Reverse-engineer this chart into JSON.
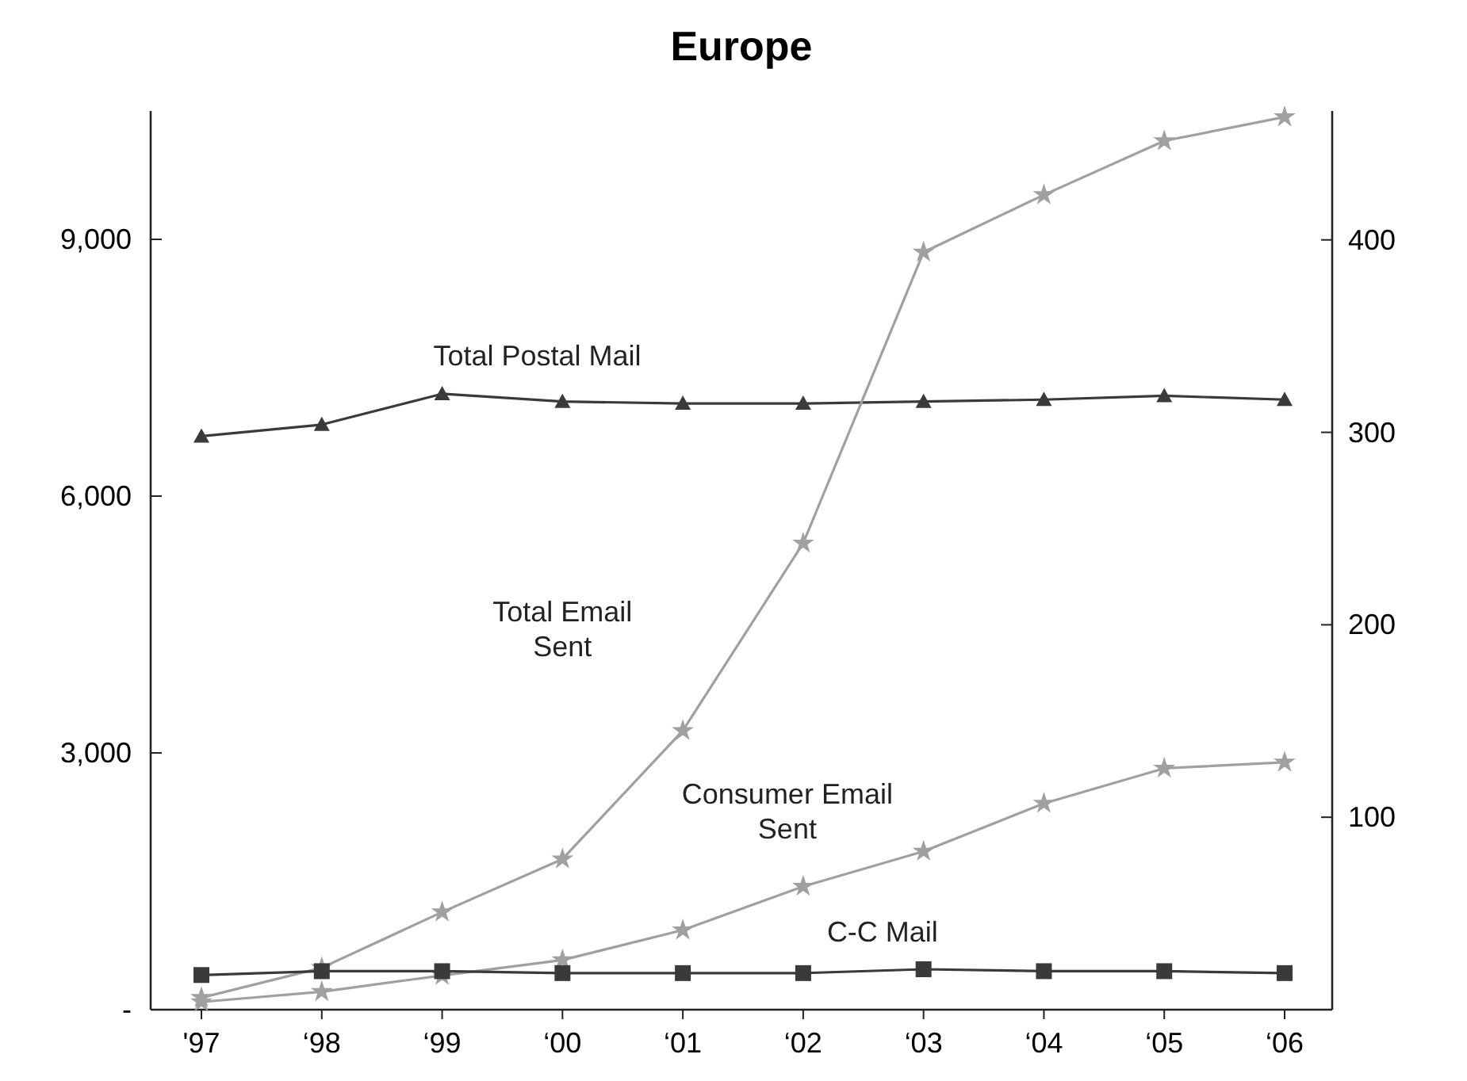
{
  "chart_data": {
    "type": "line",
    "title": "Europe",
    "categories": [
      "'97",
      "‘98",
      "‘99",
      "‘00",
      "‘01",
      "‘02",
      "‘03",
      "‘04",
      "‘05",
      "‘06"
    ],
    "series": [
      {
        "name": "Total Postal Mail",
        "color": "#3a3a3a",
        "axis": "y2",
        "marker": "triangle",
        "values": [
          298,
          304,
          320,
          316,
          315,
          315,
          316,
          317,
          319,
          317
        ]
      },
      {
        "name": "Total Email Sent",
        "color": "#a0a0a0",
        "marker": "star",
        "values": [
          140,
          490,
          1140,
          1760,
          3260,
          5450,
          8850,
          9520,
          10150,
          10430
        ]
      },
      {
        "name": "Consumer Email Sent",
        "color": "#a0a0a0",
        "marker": "star",
        "values": [
          90,
          210,
          400,
          580,
          930,
          1440,
          1850,
          2410,
          2820,
          2890
        ]
      },
      {
        "name": "C-C Mail",
        "color": "#3a3a3a",
        "axis": "y2",
        "marker": "square",
        "values": [
          18,
          20,
          20,
          19,
          19,
          19,
          21,
          20,
          20,
          19
        ]
      }
    ],
    "ylim": [
      0,
      10500
    ],
    "yticks": [
      {
        "value": 0,
        "label": "-"
      },
      {
        "value": 3000,
        "label": "3,000"
      },
      {
        "value": 6000,
        "label": "6,000"
      },
      {
        "value": 9000,
        "label": "9,000"
      }
    ],
    "y2lim": [
      0,
      467
    ],
    "y2ticks": [
      100,
      200,
      300,
      400
    ],
    "grid": false
  }
}
